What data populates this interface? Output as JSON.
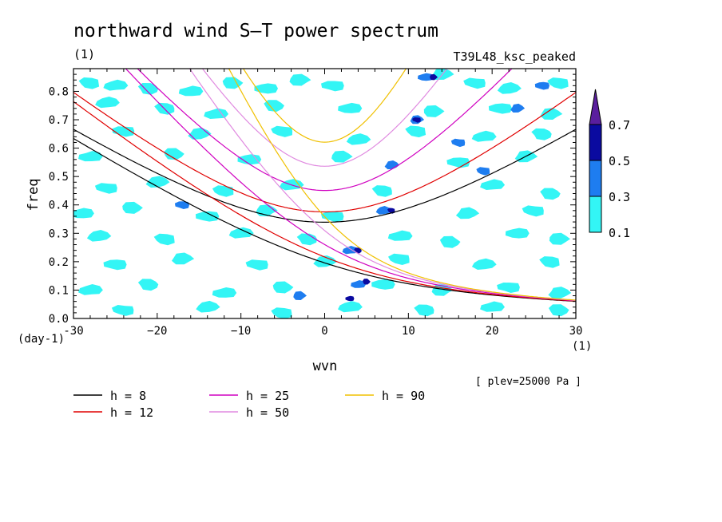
{
  "chart_data": {
    "type": "heatmap",
    "title": "northward wind S–T power spectrum",
    "units_label": "(1)",
    "run_label": "T39L48_ksc_peaked",
    "xlabel": "wvn",
    "ylabel": "freq",
    "y_unit": "(day-1)",
    "x_unit": "(1)",
    "level_note": "[ plev=25000 Pa ]",
    "xlim": [
      -30,
      30
    ],
    "ylim": [
      0.0,
      0.88
    ],
    "x_ticks": [
      -30,
      -20,
      -10,
      0,
      10,
      20,
      30
    ],
    "x_tick_labels": [
      "-30",
      "−20",
      "−10",
      "0",
      "10",
      "20",
      "30"
    ],
    "y_ticks": [
      0.0,
      0.1,
      0.2,
      0.3,
      0.4,
      0.5,
      0.6,
      0.7,
      0.8
    ],
    "y_tick_labels": [
      "0.0",
      "0.1",
      "0.2",
      "0.3",
      "0.4",
      "0.5",
      "0.6",
      "0.7",
      "0.8"
    ],
    "colorbar": {
      "levels": [
        0.1,
        0.3,
        0.5,
        0.7
      ],
      "labels": [
        "0.1",
        "0.3",
        "0.5",
        "0.7"
      ],
      "colors": [
        "#33f5f5",
        "#1e7df0",
        "#0a0aa0",
        "#5a1e9e"
      ]
    },
    "patches": [
      {
        "x": -28,
        "y": 0.83,
        "level": 0
      },
      {
        "x": -25,
        "y": 0.82,
        "level": 0
      },
      {
        "x": -21,
        "y": 0.81,
        "level": 0
      },
      {
        "x": -16,
        "y": 0.8,
        "level": 0
      },
      {
        "x": -11,
        "y": 0.83,
        "level": 0
      },
      {
        "x": -7,
        "y": 0.81,
        "level": 0
      },
      {
        "x": -3,
        "y": 0.84,
        "level": 0
      },
      {
        "x": 1,
        "y": 0.82,
        "level": 0
      },
      {
        "x": 14,
        "y": 0.86,
        "level": 0
      },
      {
        "x": 18,
        "y": 0.83,
        "level": 0
      },
      {
        "x": 22,
        "y": 0.81,
        "level": 0
      },
      {
        "x": 28,
        "y": 0.83,
        "level": 0
      },
      {
        "x": -26,
        "y": 0.76,
        "level": 0
      },
      {
        "x": -19,
        "y": 0.74,
        "level": 0
      },
      {
        "x": -13,
        "y": 0.72,
        "level": 0
      },
      {
        "x": -6,
        "y": 0.75,
        "level": 0
      },
      {
        "x": 3,
        "y": 0.74,
        "level": 0
      },
      {
        "x": 13,
        "y": 0.73,
        "level": 0
      },
      {
        "x": 21,
        "y": 0.74,
        "level": 0
      },
      {
        "x": 27,
        "y": 0.72,
        "level": 0
      },
      {
        "x": -24,
        "y": 0.66,
        "level": 0
      },
      {
        "x": -15,
        "y": 0.65,
        "level": 0
      },
      {
        "x": -5,
        "y": 0.66,
        "level": 0
      },
      {
        "x": 4,
        "y": 0.63,
        "level": 0
      },
      {
        "x": 11,
        "y": 0.66,
        "level": 0
      },
      {
        "x": 19,
        "y": 0.64,
        "level": 0
      },
      {
        "x": 26,
        "y": 0.65,
        "level": 0
      },
      {
        "x": -28,
        "y": 0.57,
        "level": 0
      },
      {
        "x": -18,
        "y": 0.58,
        "level": 0
      },
      {
        "x": -9,
        "y": 0.56,
        "level": 0
      },
      {
        "x": 2,
        "y": 0.57,
        "level": 0
      },
      {
        "x": 16,
        "y": 0.55,
        "level": 0
      },
      {
        "x": 24,
        "y": 0.57,
        "level": 0
      },
      {
        "x": -26,
        "y": 0.46,
        "level": 0
      },
      {
        "x": -20,
        "y": 0.48,
        "level": 0
      },
      {
        "x": -12,
        "y": 0.45,
        "level": 0
      },
      {
        "x": -4,
        "y": 0.47,
        "level": 0
      },
      {
        "x": 7,
        "y": 0.45,
        "level": 0
      },
      {
        "x": 20,
        "y": 0.47,
        "level": 0
      },
      {
        "x": 27,
        "y": 0.44,
        "level": 0
      },
      {
        "x": -29,
        "y": 0.37,
        "level": 0
      },
      {
        "x": -23,
        "y": 0.39,
        "level": 0
      },
      {
        "x": -14,
        "y": 0.36,
        "level": 0
      },
      {
        "x": -7,
        "y": 0.38,
        "level": 0
      },
      {
        "x": 1,
        "y": 0.36,
        "level": 0
      },
      {
        "x": 17,
        "y": 0.37,
        "level": 0
      },
      {
        "x": 25,
        "y": 0.38,
        "level": 0
      },
      {
        "x": -27,
        "y": 0.29,
        "level": 0
      },
      {
        "x": -19,
        "y": 0.28,
        "level": 0
      },
      {
        "x": -10,
        "y": 0.3,
        "level": 0
      },
      {
        "x": -2,
        "y": 0.28,
        "level": 0
      },
      {
        "x": 9,
        "y": 0.29,
        "level": 0
      },
      {
        "x": 15,
        "y": 0.27,
        "level": 0
      },
      {
        "x": 23,
        "y": 0.3,
        "level": 0
      },
      {
        "x": 28,
        "y": 0.28,
        "level": 0
      },
      {
        "x": -25,
        "y": 0.19,
        "level": 0
      },
      {
        "x": -17,
        "y": 0.21,
        "level": 0
      },
      {
        "x": -8,
        "y": 0.19,
        "level": 0
      },
      {
        "x": 0,
        "y": 0.2,
        "level": 0
      },
      {
        "x": 9,
        "y": 0.21,
        "level": 0
      },
      {
        "x": 19,
        "y": 0.19,
        "level": 0
      },
      {
        "x": 27,
        "y": 0.2,
        "level": 0
      },
      {
        "x": -28,
        "y": 0.1,
        "level": 0
      },
      {
        "x": -21,
        "y": 0.12,
        "level": 0
      },
      {
        "x": -12,
        "y": 0.09,
        "level": 0
      },
      {
        "x": -5,
        "y": 0.11,
        "level": 0
      },
      {
        "x": 7,
        "y": 0.12,
        "level": 0
      },
      {
        "x": 14,
        "y": 0.1,
        "level": 0
      },
      {
        "x": 22,
        "y": 0.11,
        "level": 0
      },
      {
        "x": 28,
        "y": 0.09,
        "level": 0
      },
      {
        "x": -24,
        "y": 0.03,
        "level": 0
      },
      {
        "x": -14,
        "y": 0.04,
        "level": 0
      },
      {
        "x": -5,
        "y": 0.02,
        "level": 0
      },
      {
        "x": 3,
        "y": 0.04,
        "level": 0
      },
      {
        "x": 12,
        "y": 0.03,
        "level": 0
      },
      {
        "x": 20,
        "y": 0.04,
        "level": 0
      },
      {
        "x": 28,
        "y": 0.03,
        "level": 0
      },
      {
        "x": 12,
        "y": 0.85,
        "level": 1
      },
      {
        "x": 13,
        "y": 0.85,
        "level": 2
      },
      {
        "x": 26,
        "y": 0.82,
        "level": 1
      },
      {
        "x": 11,
        "y": 0.7,
        "level": 1
      },
      {
        "x": 11,
        "y": 0.7,
        "level": 2
      },
      {
        "x": 8,
        "y": 0.54,
        "level": 1
      },
      {
        "x": 19,
        "y": 0.52,
        "level": 1
      },
      {
        "x": 7,
        "y": 0.38,
        "level": 1
      },
      {
        "x": 8,
        "y": 0.38,
        "level": 2
      },
      {
        "x": 3,
        "y": 0.24,
        "level": 1
      },
      {
        "x": 4,
        "y": 0.24,
        "level": 2
      },
      {
        "x": 4,
        "y": 0.12,
        "level": 1
      },
      {
        "x": 5,
        "y": 0.13,
        "level": 2
      },
      {
        "x": 3,
        "y": 0.07,
        "level": 2
      },
      {
        "x": -3,
        "y": 0.08,
        "level": 1
      },
      {
        "x": -17,
        "y": 0.4,
        "level": 1
      },
      {
        "x": 23,
        "y": 0.74,
        "level": 1
      },
      {
        "x": 16,
        "y": 0.62,
        "level": 1
      }
    ],
    "series": [
      {
        "name": "h = 8",
        "h": 8,
        "color": "#000000"
      },
      {
        "name": "h = 12",
        "h": 12,
        "color": "#e00000"
      },
      {
        "name": "h = 25",
        "h": 25,
        "color": "#d000c0"
      },
      {
        "name": "h = 50",
        "h": 50,
        "color": "#e08ae0"
      },
      {
        "name": "h = 90",
        "h": 90,
        "color": "#f0c000"
      }
    ]
  }
}
